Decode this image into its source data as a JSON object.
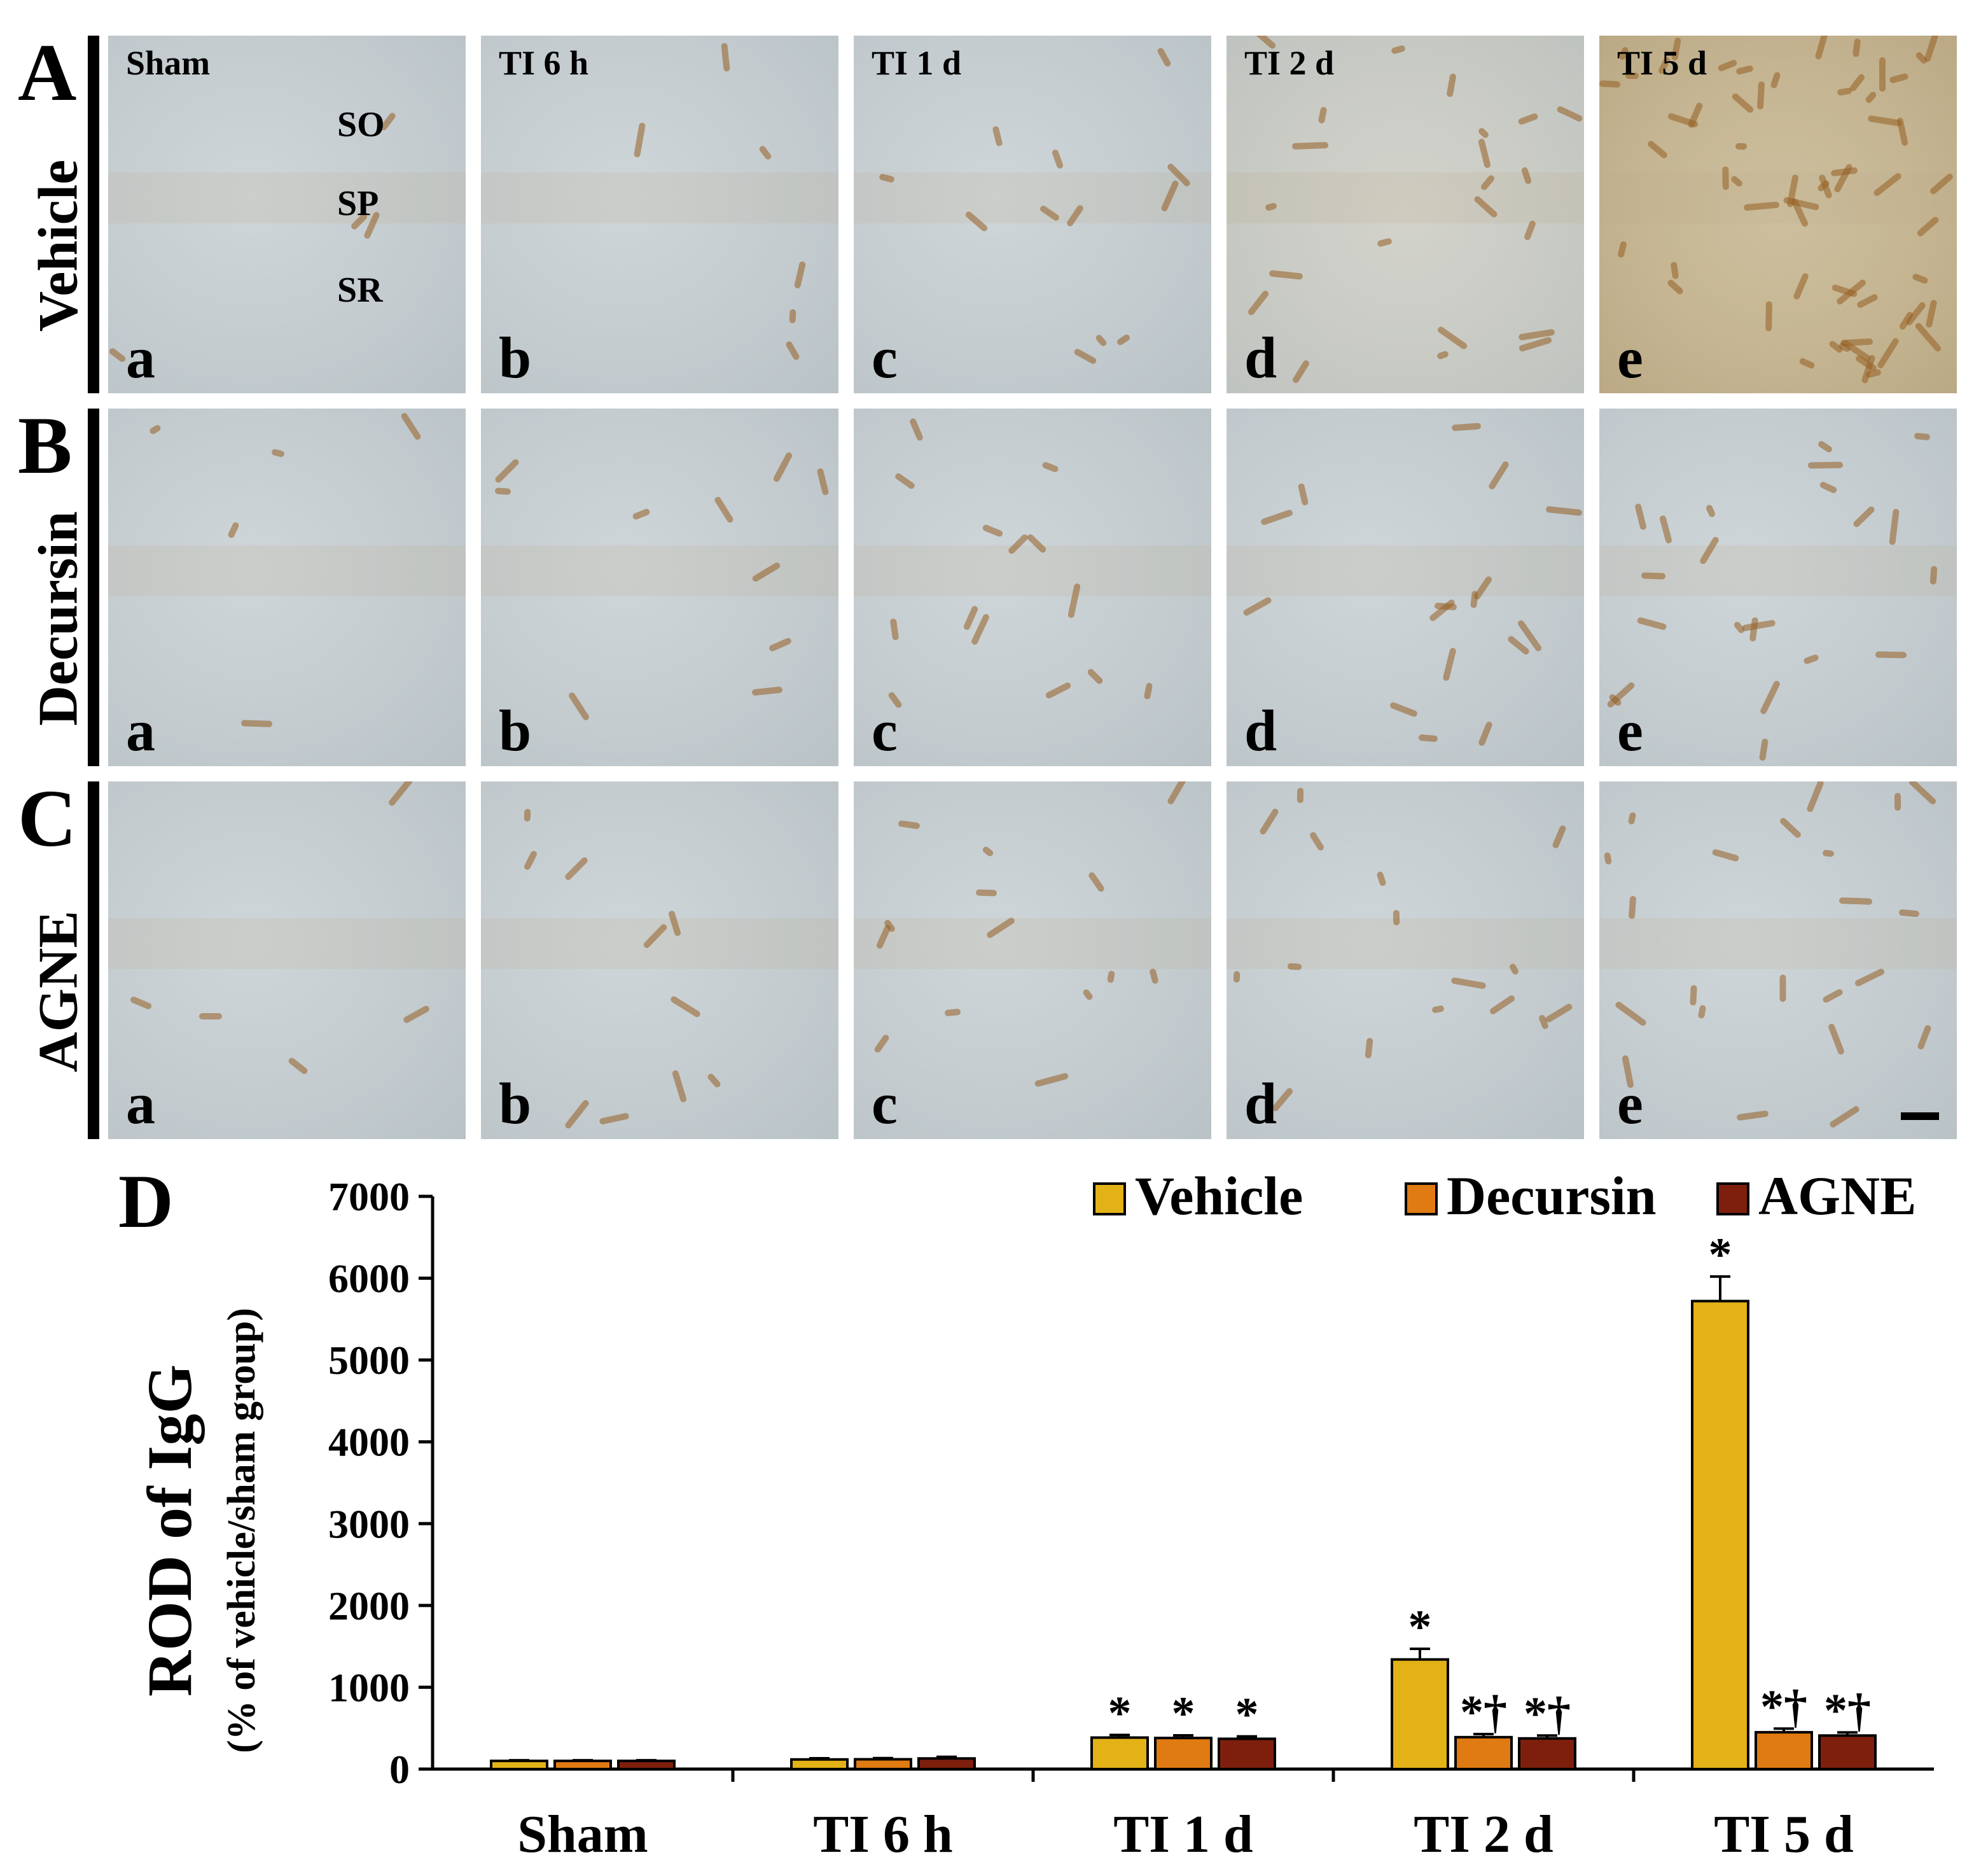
{
  "rows": [
    {
      "letter": "A",
      "label": "Vehicle"
    },
    {
      "letter": "B",
      "label": "Decursin"
    },
    {
      "letter": "C",
      "label": "AGNE"
    }
  ],
  "column_titles": [
    "Sham",
    "TI 6 h",
    "TI 1 d",
    "TI 2 d",
    "TI 5 d"
  ],
  "panel_letters": [
    "a",
    "b",
    "c",
    "d",
    "e"
  ],
  "layer_labels": [
    "SO",
    "SP",
    "SR"
  ],
  "chart_panel_letter": "D",
  "chart_data": {
    "type": "bar",
    "title": "",
    "ylabel": "ROD of IgG",
    "ylabel_sub": "(% of vehicle/sham group)",
    "xlabel": "",
    "ylim": [
      0,
      7000
    ],
    "yticks": [
      0,
      1000,
      2000,
      3000,
      4000,
      5000,
      6000,
      7000
    ],
    "legend_position": "top-right",
    "categories": [
      "Sham",
      "TI 6 h",
      "TI 1 d",
      "TI 2 d",
      "TI 5 d"
    ],
    "series": [
      {
        "name": "Vehicle",
        "color": "#e3b216",
        "values": [
          100,
          118,
          385,
          1340,
          5720
        ],
        "errors": [
          8,
          14,
          32,
          130,
          300
        ],
        "annotations": [
          "",
          "",
          "*",
          "*",
          "*"
        ]
      },
      {
        "name": "Decursin",
        "color": "#e07a12",
        "values": [
          100,
          120,
          380,
          390,
          450
        ],
        "errors": [
          8,
          14,
          32,
          38,
          45
        ],
        "annotations": [
          "",
          "",
          "*",
          "*†",
          "*†"
        ]
      },
      {
        "name": "AGNE",
        "color": "#7e1f0d",
        "values": [
          100,
          130,
          370,
          375,
          410
        ],
        "errors": [
          8,
          20,
          30,
          35,
          38
        ],
        "annotations": [
          "",
          "",
          "*",
          "*†",
          "*†"
        ]
      }
    ]
  }
}
